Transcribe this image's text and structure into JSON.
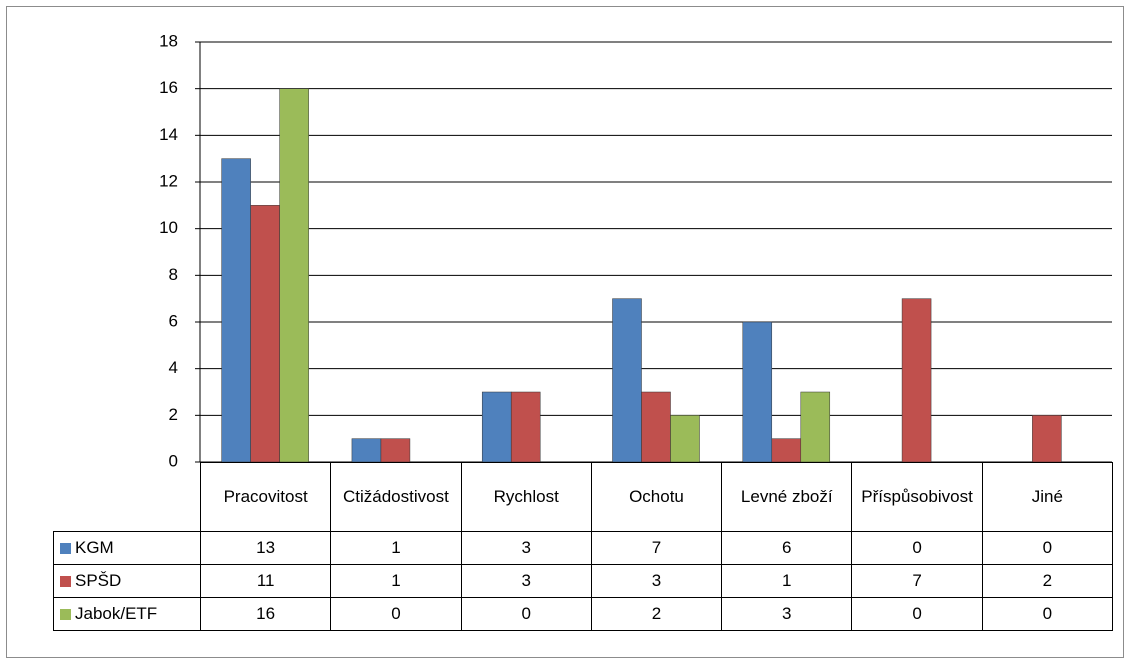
{
  "chart_data": {
    "type": "bar",
    "categories": [
      "Pracovitost",
      "Ctižádostivost",
      "Rychlost",
      "Ochotu",
      "Levné zboží",
      "Příspůsobivost",
      "Jiné"
    ],
    "series": [
      {
        "name": "KGM",
        "color": "#4f81bd",
        "values": [
          13,
          1,
          3,
          7,
          6,
          0,
          0
        ]
      },
      {
        "name": "SPŠD",
        "color": "#c0504d",
        "values": [
          11,
          1,
          3,
          3,
          1,
          7,
          2
        ]
      },
      {
        "name": "Jabok/ETF",
        "color": "#9bbb59",
        "values": [
          16,
          0,
          0,
          2,
          3,
          0,
          0
        ]
      }
    ],
    "ylim": [
      0,
      18
    ],
    "yticks": [
      0,
      2,
      4,
      6,
      8,
      10,
      12,
      14,
      16,
      18
    ],
    "grid": true,
    "data_table": true
  }
}
